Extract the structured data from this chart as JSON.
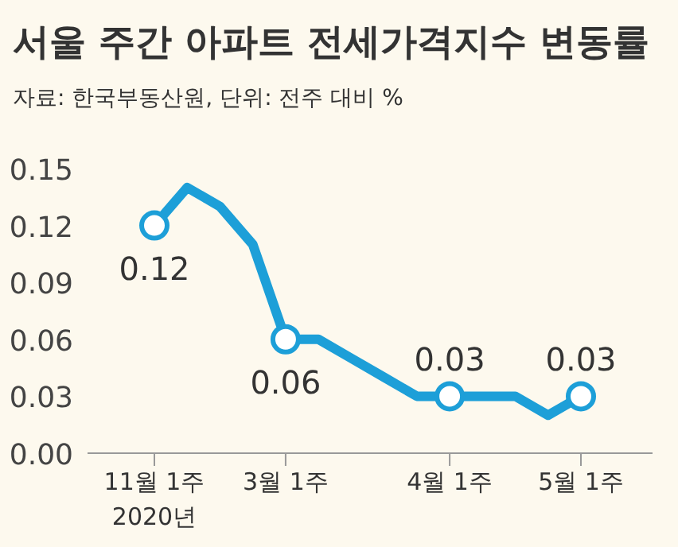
{
  "chart_data": {
    "type": "line",
    "title": "서울 주간 아파트 전세가격지수 변동률",
    "subtitle": "자료: 한국부동산원, 단위: 전주 대비 %",
    "categories": [
      "11월 1주",
      null,
      null,
      null,
      "3월 1주",
      null,
      null,
      null,
      null,
      "4월 1주",
      null,
      null,
      null,
      "5월 1주"
    ],
    "series": [
      {
        "color": "#1d9fd8",
        "values": [
          0.12,
          0.14,
          0.13,
          0.11,
          0.06,
          0.06,
          0.05,
          0.04,
          0.03,
          0.03,
          0.03,
          0.03,
          0.02,
          0.03
        ],
        "value_labels": [
          "0.12",
          null,
          null,
          null,
          "0.06",
          null,
          null,
          null,
          null,
          "0.03",
          null,
          null,
          null,
          "0.03"
        ]
      }
    ],
    "annotations": [
      "2020년"
    ],
    "ylim": [
      0,
      0.15
    ],
    "yticks": [
      {
        "value": 0,
        "label": "0.00"
      },
      {
        "value": 0.03,
        "label": "0.03"
      },
      {
        "value": 0.06,
        "label": "0.06"
      },
      {
        "value": 0.09,
        "label": "0.09"
      },
      {
        "value": 0.12,
        "label": "0.12"
      },
      {
        "value": 0.15,
        "label": "0.15"
      }
    ],
    "line_style": "solid",
    "grid": false
  }
}
